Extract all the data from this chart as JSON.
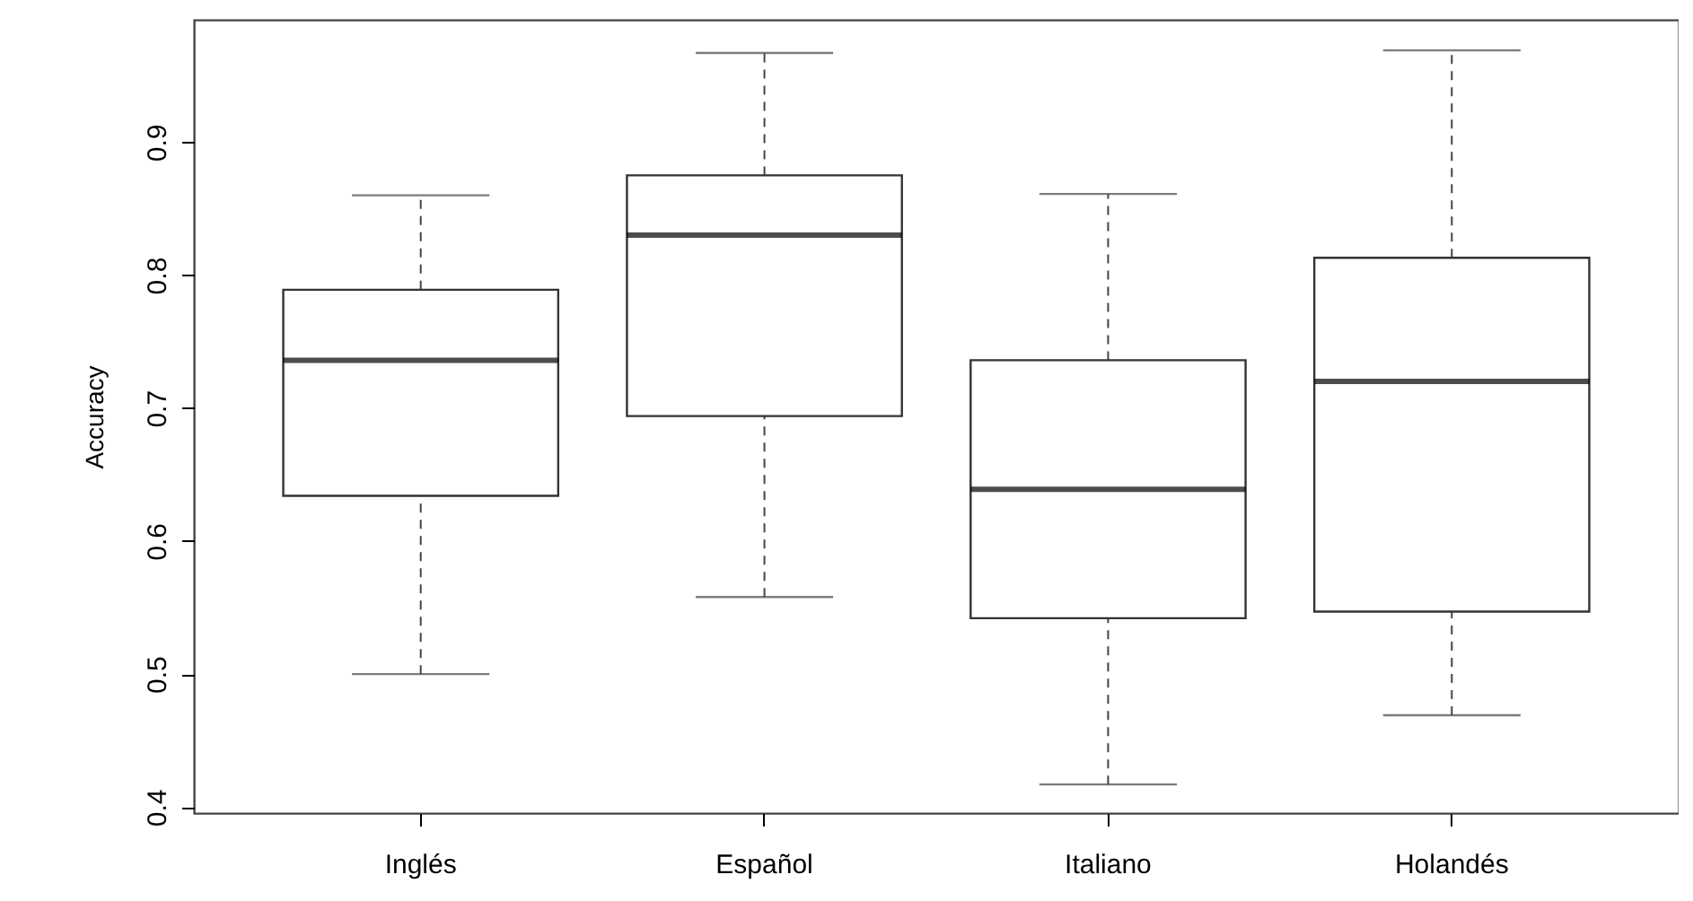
{
  "chart_data": {
    "type": "box",
    "ylabel": "Accuracy",
    "categories": [
      "Inglés",
      "Español",
      "Italiano",
      "Holandés"
    ],
    "boxes": [
      {
        "low": 0.5,
        "q1": 0.634,
        "median": 0.736,
        "q3": 0.789,
        "high": 0.86
      },
      {
        "low": 0.558,
        "q1": 0.694,
        "median": 0.83,
        "q3": 0.875,
        "high": 0.967
      },
      {
        "low": 0.417,
        "q1": 0.542,
        "median": 0.639,
        "q3": 0.736,
        "high": 0.861
      },
      {
        "low": 0.469,
        "q1": 0.547,
        "median": 0.72,
        "q3": 0.813,
        "high": 0.969
      }
    ],
    "ylim": [
      0.3955,
      0.992
    ],
    "yticks": [
      0.4,
      0.5,
      0.6,
      0.7,
      0.8,
      0.9
    ]
  }
}
